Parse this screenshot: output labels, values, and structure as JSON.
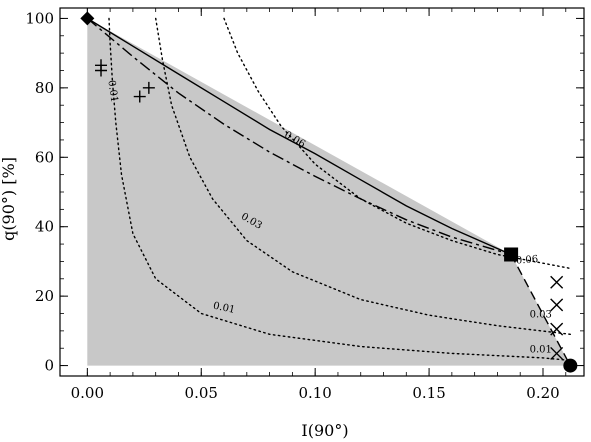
{
  "chart_data": {
    "type": "scatter",
    "xlabel": "I(90°)",
    "ylabel": "q(90°) [%]",
    "xlim": [
      -0.012,
      0.218
    ],
    "ylim": [
      -3,
      103
    ],
    "x_ticks": [
      0.0,
      0.05,
      0.1,
      0.15,
      0.2
    ],
    "x_tick_labels": [
      "0.00",
      "0.05",
      "0.10",
      "0.15",
      "0.20"
    ],
    "y_ticks": [
      0,
      20,
      40,
      60,
      80,
      100
    ],
    "y_tick_labels": [
      "0",
      "20",
      "40",
      "60",
      "80",
      "100"
    ],
    "grid": false,
    "colors": {
      "shaded_region": "#c8c8c8",
      "lines": "#000000"
    },
    "shaded_region": {
      "x": [
        0.0,
        0.0,
        0.186,
        0.212,
        0.0
      ],
      "y": [
        0,
        100,
        32,
        0,
        0
      ]
    },
    "series": [
      {
        "style": "solid",
        "x": [
          0.0,
          0.02,
          0.04,
          0.06,
          0.08,
          0.1,
          0.12,
          0.14,
          0.16,
          0.186
        ],
        "y": [
          100,
          92,
          84,
          76,
          68,
          61,
          53.5,
          46,
          39.5,
          32
        ]
      },
      {
        "style": "dash-dot",
        "x": [
          0.0,
          0.02,
          0.04,
          0.06,
          0.08,
          0.1,
          0.12,
          0.14,
          0.16,
          0.186
        ],
        "y": [
          100,
          89,
          78.5,
          69.5,
          61.5,
          54.5,
          48,
          42,
          37,
          32
        ]
      },
      {
        "style": "dashed",
        "x": [
          0.186,
          0.212
        ],
        "y": [
          32,
          0
        ]
      }
    ],
    "contours": [
      {
        "label": "0.01",
        "x": [
          0.0095,
          0.01,
          0.011,
          0.0125,
          0.015,
          0.02,
          0.03,
          0.05,
          0.08,
          0.12,
          0.16,
          0.2,
          0.212
        ],
        "y": [
          100,
          93,
          82,
          70,
          55,
          38,
          25,
          15,
          9,
          5.5,
          3.5,
          2.2,
          1.5
        ]
      },
      {
        "label": "0.03",
        "x": [
          0.03,
          0.033,
          0.037,
          0.045,
          0.055,
          0.07,
          0.09,
          0.12,
          0.15,
          0.18,
          0.212
        ],
        "y": [
          100,
          88,
          75,
          60,
          48,
          36,
          27,
          19,
          14.5,
          11.5,
          9
        ]
      },
      {
        "label": "0.06",
        "x": [
          0.06,
          0.066,
          0.075,
          0.085,
          0.1,
          0.12,
          0.14,
          0.16,
          0.18,
          0.2,
          0.212
        ],
        "y": [
          100,
          90,
          79,
          69,
          58,
          48,
          41,
          36,
          32,
          29.5,
          28
        ]
      }
    ],
    "contour_labels": [
      {
        "text": "0.01",
        "x": 0.011,
        "y": 79,
        "angle": 82
      },
      {
        "text": "0.03",
        "x": 0.072,
        "y": 41.5,
        "angle": 30
      },
      {
        "text": "0.06",
        "x": 0.091,
        "y": 65,
        "angle": 30
      },
      {
        "text": "0.01",
        "x": 0.06,
        "y": 16.5,
        "angle": 12
      },
      {
        "text": "0.06",
        "x": 0.193,
        "y": 30.3,
        "angle": -4
      },
      {
        "text": "0.03",
        "x": 0.199,
        "y": 14.5,
        "angle": 0
      },
      {
        "text": "0.01",
        "x": 0.199,
        "y": 4.5,
        "angle": 0
      }
    ],
    "markers": [
      {
        "symbol": "diamond",
        "x": 0.0,
        "y": 100
      },
      {
        "symbol": "square",
        "x": 0.186,
        "y": 32
      },
      {
        "symbol": "circle",
        "x": 0.212,
        "y": 0
      },
      {
        "symbol": "plus",
        "x": 0.006,
        "y": 86.5
      },
      {
        "symbol": "plus",
        "x": 0.006,
        "y": 85
      },
      {
        "symbol": "plus",
        "x": 0.023,
        "y": 77.5
      },
      {
        "symbol": "plus",
        "x": 0.027,
        "y": 80
      },
      {
        "symbol": "cross",
        "x": 0.206,
        "y": 24
      },
      {
        "symbol": "cross",
        "x": 0.206,
        "y": 17.5
      },
      {
        "symbol": "cross",
        "x": 0.206,
        "y": 10.5
      },
      {
        "symbol": "cross",
        "x": 0.206,
        "y": 3.5
      }
    ]
  }
}
